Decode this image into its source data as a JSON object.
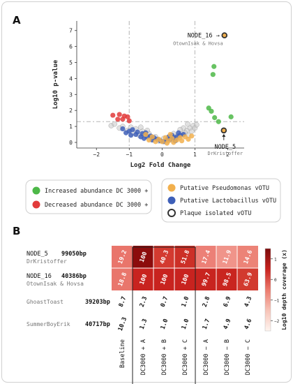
{
  "panel_a_label": "A",
  "panel_b_label": "B",
  "chart_data": [
    {
      "type": "scatter",
      "xlabel": "Log2 Fold Change",
      "ylabel": "Log10 p-value",
      "xlim": [
        -2.6,
        2.5
      ],
      "ylim": [
        -0.35,
        7.6
      ],
      "x_ticks": [
        -2,
        -1,
        0,
        1,
        2
      ],
      "y_ticks": [
        0,
        1,
        2,
        3,
        4,
        5,
        6,
        7
      ],
      "threshold_lines": {
        "x": [
          -1,
          1
        ],
        "y": 1.3
      },
      "annotations": [
        {
          "name": "NODE_16",
          "label": "NODE_16 →",
          "sublabel": "OtownIsak & Hovsa",
          "x": 1.9,
          "y": 6.7
        },
        {
          "name": "NODE_5",
          "label": "NODE_5",
          "sublabel": "DrKristoffer",
          "x": 1.88,
          "y": 0.75
        }
      ],
      "series": [
        {
          "key": "grey",
          "color": "#c8c8c8",
          "points": [
            [
              -1.55,
              1.05
            ],
            [
              -1.45,
              1.15
            ],
            [
              -1.2,
              1.0
            ],
            [
              -0.95,
              0.95
            ],
            [
              -0.8,
              0.85
            ],
            [
              -0.6,
              0.7
            ],
            [
              -0.4,
              0.55
            ],
            [
              -0.2,
              0.35
            ],
            [
              0.05,
              0.25
            ],
            [
              0.25,
              0.3
            ],
            [
              0.45,
              0.4
            ],
            [
              0.6,
              0.55
            ],
            [
              0.75,
              0.75
            ],
            [
              0.85,
              0.9
            ],
            [
              0.95,
              1.05
            ],
            [
              0.7,
              0.6
            ],
            [
              0.5,
              0.3
            ],
            [
              0.3,
              0.15
            ],
            [
              -0.3,
              0.2
            ],
            [
              -0.5,
              0.4
            ],
            [
              -0.7,
              0.45
            ],
            [
              -0.9,
              0.6
            ],
            [
              -1.05,
              0.75
            ],
            [
              -1.3,
              0.9
            ],
            [
              0.8,
              0.45
            ],
            [
              0.9,
              0.7
            ],
            [
              1.0,
              0.9
            ],
            [
              1.05,
              1.1
            ],
            [
              0.65,
              0.9
            ],
            [
              -0.1,
              0.1
            ],
            [
              0.15,
              0.05
            ],
            [
              0.35,
              0.55
            ],
            [
              -0.45,
              0.75
            ],
            [
              -0.65,
              0.95
            ],
            [
              0.55,
              0.8
            ],
            [
              0.78,
              1.15
            ]
          ]
        },
        {
          "key": "red",
          "color": "#e23b3b",
          "points": [
            [
              -1.5,
              1.7
            ],
            [
              -1.3,
              1.75
            ],
            [
              -1.15,
              1.65
            ],
            [
              -1.05,
              1.6
            ],
            [
              -1.2,
              1.45
            ],
            [
              -1.35,
              1.45
            ],
            [
              -1.0,
              1.35
            ]
          ]
        },
        {
          "key": "green",
          "color": "#4db848",
          "points": [
            [
              1.55,
              4.25
            ],
            [
              1.58,
              4.75
            ],
            [
              1.5,
              1.95
            ],
            [
              1.6,
              1.55
            ],
            [
              1.72,
              1.3
            ],
            [
              2.1,
              1.6
            ],
            [
              1.42,
              2.15
            ]
          ]
        },
        {
          "key": "blue",
          "color": "#3e5fb8",
          "points": [
            [
              -1.2,
              0.85
            ],
            [
              -1.0,
              0.7
            ],
            [
              -0.9,
              0.8
            ],
            [
              -0.75,
              0.65
            ],
            [
              -0.6,
              0.55
            ],
            [
              -0.5,
              0.6
            ],
            [
              -0.45,
              0.35
            ],
            [
              -0.35,
              0.4
            ],
            [
              -0.25,
              0.3
            ],
            [
              -0.15,
              0.2
            ],
            [
              -0.05,
              0.1
            ],
            [
              0.05,
              0.05
            ],
            [
              0.15,
              0.15
            ],
            [
              0.25,
              0.2
            ],
            [
              0.35,
              0.3
            ],
            [
              0.45,
              0.35
            ],
            [
              0.55,
              0.45
            ],
            [
              0.65,
              0.5
            ],
            [
              -0.8,
              0.5
            ],
            [
              -0.65,
              0.35
            ],
            [
              -0.55,
              0.25
            ],
            [
              -0.3,
              0.15
            ],
            [
              0.2,
              0.35
            ],
            [
              0.4,
              0.1
            ],
            [
              0.5,
              0.6
            ],
            [
              -1.1,
              0.6
            ],
            [
              -0.95,
              0.45
            ],
            [
              0.3,
              0.45
            ]
          ]
        },
        {
          "key": "orange",
          "color": "#f2b04d",
          "points": [
            [
              -0.5,
              0.5
            ],
            [
              -0.3,
              0.35
            ],
            [
              -0.1,
              0.2
            ],
            [
              0.0,
              0.05
            ],
            [
              0.1,
              0.3
            ],
            [
              0.2,
              0.1
            ],
            [
              0.3,
              0.25
            ],
            [
              0.45,
              0.15
            ],
            [
              0.55,
              0.3
            ],
            [
              0.7,
              0.35
            ],
            [
              0.8,
              0.2
            ],
            [
              -0.2,
              0.05
            ],
            [
              0.35,
              0.0
            ],
            [
              0.6,
              0.1
            ],
            [
              -0.4,
              0.15
            ],
            [
              0.15,
              -0.05
            ],
            [
              0.9,
              0.4
            ],
            [
              0.25,
              0.5
            ]
          ]
        },
        {
          "key": "plaque",
          "color": "#f2b04d",
          "points": [
            [
              1.9,
              6.7
            ],
            [
              1.88,
              0.75
            ]
          ]
        }
      ]
    },
    {
      "type": "heatmap",
      "colorbar_label": "Log10 depth coverage (x)",
      "colorbar_ticks": [
        1,
        0,
        -1,
        -2
      ],
      "colorbar_range": [
        -2.5,
        1.5
      ],
      "columns": [
        "Baseline",
        "DC3000 + A",
        "DC3000 + B",
        "DC3000 + C",
        "DC3000 − A",
        "DC3000 − B",
        "DC3000 − C"
      ],
      "rows": [
        {
          "node": "NODE_5",
          "size": "99050bp",
          "name": "DrKristoffer",
          "values": [
            "19.2",
            "100",
            "40.3",
            "51.8",
            "17.4",
            "11.9",
            "14.6"
          ],
          "colors": [
            "#e9756b",
            "#8c0c0c",
            "#d33a30",
            "#cc3027",
            "#ec8077",
            "#f0948a",
            "#ec8377"
          ]
        },
        {
          "node": "NODE_16",
          "size": "40386bp",
          "name": "OtownIsak & Hovsa",
          "values": [
            "18.8",
            "100",
            "100",
            "100",
            "99.7",
            "98.5",
            "63.9"
          ],
          "colors": [
            "#e9766c",
            "#c8231f",
            "#c8231f",
            "#c8231f",
            "#c8241f",
            "#c9251f",
            "#d23a2f"
          ]
        },
        {
          "node": "",
          "size": "39203bp",
          "name": "GhoastToast",
          "values": [
            "8.7",
            "2.3",
            "0.7",
            "1.0",
            "2.8",
            "6.9",
            "4.3"
          ],
          "colors": [
            "#ffffff",
            "#ffffff",
            "#ffffff",
            "#ffffff",
            "#ffffff",
            "#ffffff",
            "#ffffff"
          ]
        },
        {
          "node": "",
          "size": "40717bp",
          "name": "SummerBoyErik",
          "values": [
            "10.3",
            "1.3",
            "1.0",
            "1.0",
            "1.7",
            "4.9",
            "4.6"
          ],
          "colors": [
            "#ffffff",
            "#ffffff",
            "#ffffff",
            "#ffffff",
            "#ffffff",
            "#ffffff",
            "#ffffff"
          ]
        }
      ]
    }
  ],
  "legend": {
    "left": [
      {
        "label": "Increased abundance DC 3000 +",
        "color": "#4db848"
      },
      {
        "label": "Decreased abundance DC 3000 +",
        "color": "#e23b3b"
      }
    ],
    "right": [
      {
        "label": "Putative Pseudomonas vOTU",
        "color": "#f2b04d"
      },
      {
        "label": "Putative Lactobacillus vOTU",
        "color": "#3e5fb8"
      },
      {
        "label": "Plaque isolated vOTU",
        "color": "#ffffff"
      }
    ]
  }
}
